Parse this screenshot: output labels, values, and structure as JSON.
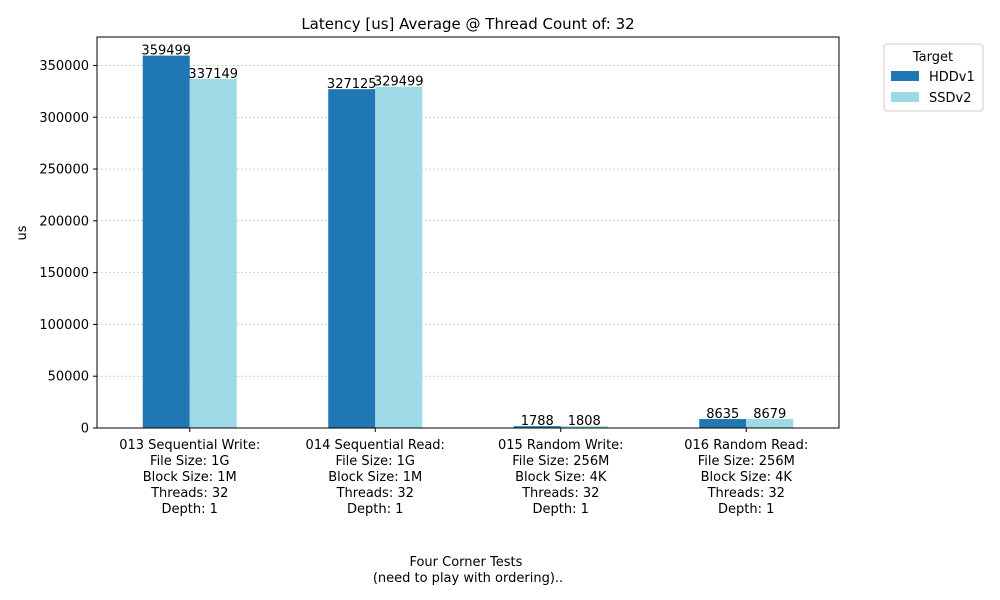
{
  "chart_data": {
    "type": "bar",
    "title": "Latency [us] Average @ Thread Count of: 32",
    "xlabel": [
      "Four Corner Tests",
      "(need to play with ordering).."
    ],
    "ylabel": "us",
    "ylim": [
      0,
      377474
    ],
    "yticks": [
      0,
      50000,
      100000,
      150000,
      200000,
      250000,
      300000,
      350000
    ],
    "grid": true,
    "legend_title": "Target",
    "legend_position": "upper right, outside plot",
    "categories": [
      [
        "013 Sequential Write:",
        "File Size: 1G",
        "Block Size: 1M",
        "Threads: 32",
        "Depth: 1"
      ],
      [
        "014 Sequential Read:",
        "File Size: 1G",
        "Block Size: 1M",
        "Threads: 32",
        "Depth: 1"
      ],
      [
        "015 Random Write:",
        "File Size: 256M",
        "Block Size: 4K",
        "Threads: 32",
        "Depth: 1"
      ],
      [
        "016 Random Read:",
        "File Size: 256M",
        "Block Size: 4K",
        "Threads: 32",
        "Depth: 1"
      ]
    ],
    "series": [
      {
        "name": "HDDv1",
        "color": "#1f77b4",
        "values": [
          359499,
          327125,
          1788,
          8635
        ]
      },
      {
        "name": "SSDv2",
        "color": "#9edae5",
        "values": [
          337149,
          329499,
          1808,
          8679
        ]
      }
    ]
  }
}
